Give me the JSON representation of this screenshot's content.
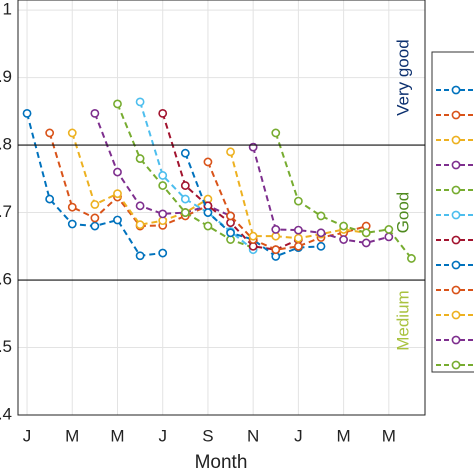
{
  "chart_data": {
    "type": "line",
    "xlabel": "Month",
    "x": [
      0,
      1,
      2,
      3,
      4,
      5,
      6,
      7,
      8,
      9,
      10,
      11,
      12,
      13,
      14,
      15,
      16,
      17
    ],
    "xlim": [
      -0.4,
      17.6
    ],
    "xticks": [
      {
        "value": 0,
        "label": "J"
      },
      {
        "value": 2,
        "label": "M"
      },
      {
        "value": 4,
        "label": "M"
      },
      {
        "value": 6,
        "label": "J"
      },
      {
        "value": 8,
        "label": "S"
      },
      {
        "value": 10,
        "label": "N"
      },
      {
        "value": 12,
        "label": "J"
      },
      {
        "value": 14,
        "label": "M"
      },
      {
        "value": 16,
        "label": "M"
      }
    ],
    "ylim": [
      0.4,
      1.015
    ],
    "yticks": [
      {
        "value": 0.4,
        "label": "0.4"
      },
      {
        "value": 0.5,
        "label": "0.5"
      },
      {
        "value": 0.6,
        "label": "0.6"
      },
      {
        "value": 0.7,
        "label": "0.7"
      },
      {
        "value": 0.8,
        "label": "0.8"
      },
      {
        "value": 0.9,
        "label": "0.9"
      },
      1
    ],
    "grid": true,
    "thresholds": [
      0.8,
      0.6
    ],
    "annotations": [
      {
        "text": "Very good",
        "y": 0.9,
        "color": "#0b2f6e"
      },
      {
        "text": "Good",
        "y": 0.7,
        "color": "#4f8a1f"
      },
      {
        "text": "Medium",
        "y": 0.54,
        "color": "#a9c23f"
      }
    ],
    "series": [
      {
        "color": "#0072BD",
        "values": [
          0.847,
          0.72,
          0.683,
          0.68,
          0.689,
          0.636,
          0.64,
          null,
          null,
          null,
          null,
          null,
          null,
          null,
          null,
          null,
          null,
          null
        ]
      },
      {
        "color": "#D95319",
        "values": [
          null,
          0.818,
          0.708,
          0.692,
          0.723,
          0.68,
          0.681,
          0.695,
          0.71,
          null,
          null,
          null,
          null,
          null,
          null,
          null,
          null,
          null
        ]
      },
      {
        "color": "#EDB120",
        "values": [
          null,
          null,
          0.818,
          0.712,
          0.728,
          0.682,
          0.688,
          0.7,
          0.72,
          null,
          null,
          null,
          null,
          null,
          null,
          null,
          null,
          null
        ]
      },
      {
        "color": "#7E2F8E",
        "values": [
          null,
          null,
          null,
          0.847,
          0.76,
          0.71,
          0.698,
          0.7,
          0.71,
          0.695,
          null,
          null,
          null,
          null,
          null,
          null,
          null,
          null
        ]
      },
      {
        "color": "#77AC30",
        "values": [
          null,
          null,
          null,
          null,
          0.861,
          0.78,
          0.74,
          0.7,
          0.68,
          0.66,
          0.648,
          null,
          null,
          null,
          null,
          null,
          null,
          null
        ]
      },
      {
        "color": "#4DBEEE",
        "values": [
          null,
          null,
          null,
          null,
          null,
          0.864,
          0.755,
          0.72,
          0.7,
          0.672,
          0.645,
          null,
          null,
          null,
          null,
          null,
          null,
          null
        ]
      },
      {
        "color": "#A2142F",
        "values": [
          null,
          null,
          null,
          null,
          null,
          null,
          0.847,
          0.74,
          0.71,
          0.685,
          0.65,
          0.645,
          0.66,
          null,
          null,
          null,
          null,
          null
        ]
      },
      {
        "color": "#0072BD",
        "values": [
          null,
          null,
          null,
          null,
          null,
          null,
          null,
          0.788,
          0.7,
          0.67,
          0.66,
          0.635,
          0.648,
          0.65,
          null,
          null,
          null,
          null
        ]
      },
      {
        "color": "#D95319",
        "values": [
          null,
          null,
          null,
          null,
          null,
          null,
          null,
          null,
          0.775,
          0.695,
          0.66,
          0.645,
          0.65,
          0.663,
          0.67,
          0.68,
          null,
          null
        ]
      },
      {
        "color": "#EDB120",
        "values": [
          null,
          null,
          null,
          null,
          null,
          null,
          null,
          null,
          null,
          0.79,
          0.665,
          0.665,
          0.662,
          0.668,
          0.675,
          0.67,
          null,
          null
        ]
      },
      {
        "color": "#7E2F8E",
        "values": [
          null,
          null,
          null,
          null,
          null,
          null,
          null,
          null,
          null,
          null,
          0.797,
          0.675,
          0.674,
          0.67,
          0.66,
          0.655,
          0.664,
          null
        ]
      },
      {
        "color": "#77AC30",
        "values": [
          null,
          null,
          null,
          null,
          null,
          null,
          null,
          null,
          null,
          null,
          null,
          0.818,
          0.717,
          0.695,
          0.68,
          0.67,
          0.675,
          0.632
        ]
      }
    ]
  }
}
